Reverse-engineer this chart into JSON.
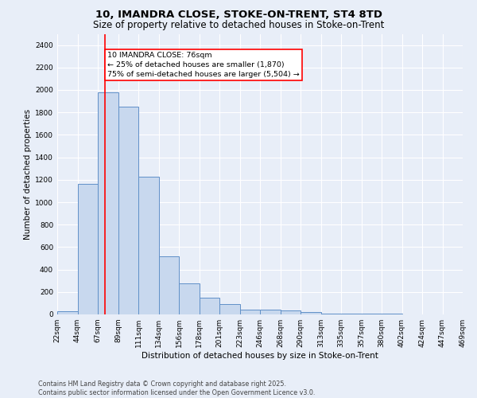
{
  "title": "10, IMANDRA CLOSE, STOKE-ON-TRENT, ST4 8TD",
  "subtitle": "Size of property relative to detached houses in Stoke-on-Trent",
  "xlabel": "Distribution of detached houses by size in Stoke-on-Trent",
  "ylabel": "Number of detached properties",
  "bin_edges": [
    22,
    45,
    68,
    91,
    114,
    137,
    160,
    183,
    206,
    229,
    252,
    275,
    298,
    321,
    344,
    367,
    390,
    413,
    436,
    459,
    482
  ],
  "bin_labels": [
    "22sqm",
    "44sqm",
    "67sqm",
    "89sqm",
    "111sqm",
    "134sqm",
    "156sqm",
    "178sqm",
    "201sqm",
    "223sqm",
    "246sqm",
    "268sqm",
    "290sqm",
    "313sqm",
    "335sqm",
    "357sqm",
    "380sqm",
    "402sqm",
    "424sqm",
    "447sqm",
    "469sqm"
  ],
  "counts": [
    30,
    1160,
    1980,
    1850,
    1230,
    520,
    275,
    150,
    95,
    45,
    40,
    35,
    20,
    10,
    5,
    5,
    5,
    3,
    2,
    2
  ],
  "bar_color": "#c8d8ee",
  "bar_edge_color": "#6090c8",
  "background_color": "#e8eef8",
  "grid_color": "#ffffff",
  "red_line_x": 76,
  "annotation_line1": "10 IMANDRA CLOSE: 76sqm",
  "annotation_line2": "← 25% of detached houses are smaller (1,870)",
  "annotation_line3": "75% of semi-detached houses are larger (5,504) →",
  "ylim": [
    0,
    2500
  ],
  "yticks": [
    0,
    200,
    400,
    600,
    800,
    1000,
    1200,
    1400,
    1600,
    1800,
    2000,
    2200,
    2400
  ],
  "footer_line1": "Contains HM Land Registry data © Crown copyright and database right 2025.",
  "footer_line2": "Contains public sector information licensed under the Open Government Licence v3.0.",
  "title_fontsize": 9.5,
  "subtitle_fontsize": 8.5,
  "axis_label_fontsize": 7.5,
  "tick_fontsize": 6.5,
  "annotation_fontsize": 6.8,
  "footer_fontsize": 5.8
}
